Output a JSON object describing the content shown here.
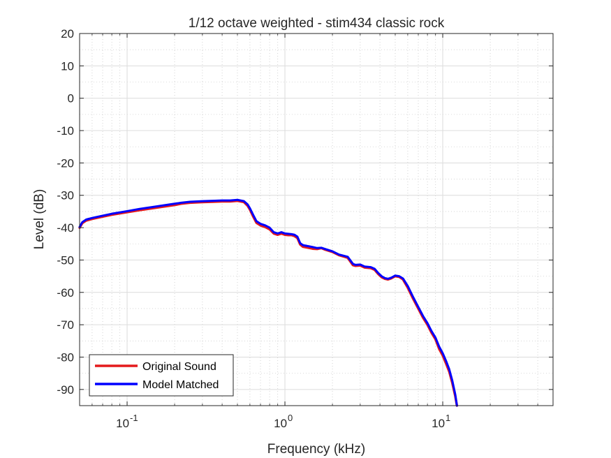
{
  "chart_data": {
    "type": "line",
    "title": "1/12 octave weighted - stim434 classic rock",
    "xlabel": "Frequency (kHz)",
    "ylabel": "Level (dB)",
    "xscale": "log",
    "xlim": [
      0.05,
      50
    ],
    "ylim": [
      -95,
      20
    ],
    "grid": true,
    "minor_grid": true,
    "legend_position": "bottom-left",
    "x_ticks": [
      {
        "value": 0.1,
        "base": "10",
        "exp": "-1"
      },
      {
        "value": 1,
        "base": "10",
        "exp": "0"
      },
      {
        "value": 10,
        "base": "10",
        "exp": "1"
      }
    ],
    "y_ticks": [
      20,
      10,
      0,
      -10,
      -20,
      -30,
      -40,
      -50,
      -60,
      -70,
      -80,
      -90
    ],
    "series": [
      {
        "name": "Original Sound",
        "color": "#e41a1c",
        "x": [
          0.05,
          0.052,
          0.055,
          0.06,
          0.07,
          0.08,
          0.1,
          0.12,
          0.15,
          0.2,
          0.22,
          0.25,
          0.3,
          0.35,
          0.4,
          0.45,
          0.5,
          0.55,
          0.58,
          0.6,
          0.63,
          0.66,
          0.7,
          0.75,
          0.8,
          0.85,
          0.9,
          0.95,
          1.0,
          1.05,
          1.1,
          1.15,
          1.2,
          1.25,
          1.3,
          1.4,
          1.5,
          1.6,
          1.7,
          1.8,
          2.0,
          2.2,
          2.5,
          2.7,
          2.8,
          3.0,
          3.2,
          3.5,
          3.7,
          3.9,
          4.1,
          4.3,
          4.5,
          4.7,
          5.0,
          5.3,
          5.6,
          6.0,
          6.5,
          7.0,
          7.5,
          8.0,
          8.5,
          9.0,
          9.5,
          10.0,
          10.5,
          11.0,
          11.5,
          12.0,
          12.3
        ],
        "y": [
          -40,
          -38.6,
          -37.8,
          -37.3,
          -36.6,
          -36.0,
          -35.2,
          -34.6,
          -33.9,
          -33.0,
          -32.6,
          -32.3,
          -32.1,
          -32.0,
          -31.9,
          -31.9,
          -31.7,
          -32.1,
          -33.2,
          -34.4,
          -36.6,
          -38.5,
          -39.3,
          -39.8,
          -40.5,
          -41.8,
          -42.2,
          -41.8,
          -42.2,
          -42.3,
          -42.3,
          -42.6,
          -43.2,
          -45.2,
          -45.9,
          -46.2,
          -46.5,
          -46.6,
          -46.3,
          -46.8,
          -47.5,
          -48.5,
          -49.3,
          -51.6,
          -51.8,
          -51.7,
          -52.3,
          -52.5,
          -53.0,
          -54.3,
          -55.3,
          -55.8,
          -56.0,
          -55.7,
          -55.0,
          -55.2,
          -56.0,
          -58.5,
          -62.0,
          -65.0,
          -67.8,
          -70.0,
          -72.5,
          -74.5,
          -77.5,
          -79.5,
          -82.0,
          -84.5,
          -88.0,
          -92.0,
          -95.0
        ]
      },
      {
        "name": "Model Matched",
        "color": "#0000ff",
        "x": [
          0.05,
          0.052,
          0.055,
          0.06,
          0.07,
          0.08,
          0.1,
          0.12,
          0.15,
          0.2,
          0.22,
          0.25,
          0.3,
          0.35,
          0.4,
          0.45,
          0.5,
          0.55,
          0.58,
          0.6,
          0.63,
          0.66,
          0.7,
          0.75,
          0.8,
          0.85,
          0.9,
          0.95,
          1.0,
          1.05,
          1.1,
          1.15,
          1.2,
          1.25,
          1.3,
          1.4,
          1.5,
          1.6,
          1.7,
          1.8,
          2.0,
          2.2,
          2.5,
          2.7,
          2.8,
          3.0,
          3.2,
          3.5,
          3.7,
          3.9,
          4.1,
          4.3,
          4.5,
          4.7,
          5.0,
          5.3,
          5.6,
          6.0,
          6.5,
          7.0,
          7.5,
          8.0,
          8.5,
          9.0,
          9.5,
          10.0,
          10.5,
          11.0,
          11.5,
          12.0,
          12.3
        ],
        "y": [
          -39.8,
          -38.3,
          -37.5,
          -37.0,
          -36.3,
          -35.7,
          -34.9,
          -34.2,
          -33.5,
          -32.6,
          -32.3,
          -32.0,
          -31.8,
          -31.7,
          -31.6,
          -31.6,
          -31.4,
          -31.8,
          -32.8,
          -34.0,
          -36.1,
          -38.0,
          -38.8,
          -39.3,
          -40.0,
          -41.4,
          -41.8,
          -41.4,
          -41.8,
          -41.9,
          -42.0,
          -42.2,
          -42.8,
          -44.8,
          -45.4,
          -45.7,
          -46.0,
          -46.3,
          -46.2,
          -46.6,
          -47.3,
          -48.3,
          -49.0,
          -51.2,
          -51.5,
          -51.4,
          -52.0,
          -52.2,
          -52.7,
          -54.0,
          -55.0,
          -55.6,
          -55.8,
          -55.5,
          -54.8,
          -55.0,
          -55.7,
          -58.0,
          -61.5,
          -64.5,
          -67.3,
          -69.5,
          -72.0,
          -74.0,
          -76.8,
          -78.8,
          -81.2,
          -83.8,
          -87.3,
          -91.5,
          -95.0
        ]
      }
    ]
  }
}
